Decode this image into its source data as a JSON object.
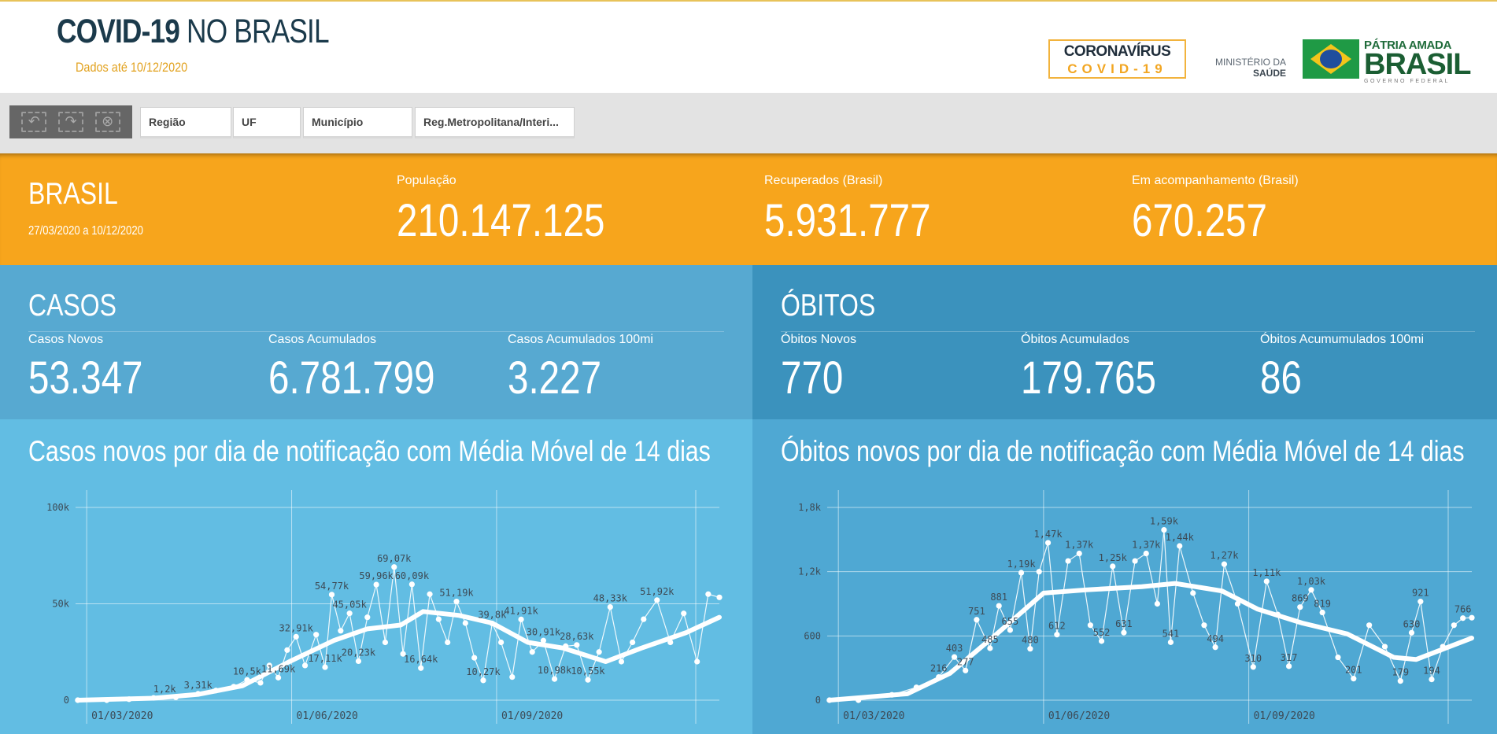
{
  "header": {
    "title_bold": "COVID-19",
    "title_light": " NO BRASIL",
    "updated": "Dados até 10/12/2020",
    "logo_covid_line1": "CORONAVÍRUS",
    "logo_covid_line2": "COVID-19",
    "ministry_line1": "MINISTÉRIO DA",
    "ministry_line2": "SAÚDE",
    "gov_line1": "PÁTRIA AMADA",
    "gov_line2": "BRASIL",
    "gov_line3": "GOVERNO FEDERAL"
  },
  "filters": {
    "undo_icon": "undo-icon",
    "redo_icon": "redo-icon",
    "clear_icon": "clear-selection-icon",
    "items": [
      "Região",
      "UF",
      "Município",
      "Reg.Metropolitana/Interi..."
    ]
  },
  "summary": {
    "title": "BRASIL",
    "range": "27/03/2020 a 10/12/2020",
    "populacao_label": "População",
    "populacao_value": "210.147.125",
    "recuperados_label": "Recuperados (Brasil)",
    "recuperados_value": "5.931.777",
    "acompanhamento_label": "Em acompanhamento (Brasil)",
    "acompanhamento_value": "670.257"
  },
  "casos": {
    "title": "CASOS",
    "metrics": [
      {
        "label": "Casos Novos",
        "value": "53.347"
      },
      {
        "label": "Casos Acumulados",
        "value": "6.781.799"
      },
      {
        "label": "Casos Acumulados 100mi",
        "value": "3.227"
      }
    ]
  },
  "obitos": {
    "title": "ÓBITOS",
    "metrics": [
      {
        "label": "Óbitos Novos",
        "value": "770"
      },
      {
        "label": "Óbitos Acumulados",
        "value": "179.765"
      },
      {
        "label": "Óbitos Acumumulados 100mi",
        "value": "86"
      }
    ]
  },
  "colors": {
    "summary_bg": "#f7a51c",
    "casos_bg": "#57a9d1",
    "obitos_bg": "#3b92bd",
    "casos_chart_bg": "#62bde3",
    "obitos_chart_bg": "#4fa8d3",
    "series": "#ffffff",
    "axis_text": "#3d4a55"
  },
  "chart_data": [
    {
      "type": "line",
      "title": "Casos novos por dia de notificação com Média Móvel de 14 dias",
      "xlabel": "",
      "ylabel": "",
      "ylim": [
        0,
        100000
      ],
      "yticks": [
        0,
        50000,
        100000
      ],
      "ytick_labels": [
        "0",
        "50k",
        "100k"
      ],
      "xticks": [
        "2020-03-01",
        "2020-06-01",
        "2020-09-01"
      ],
      "xtick_labels": [
        "01/03/2020",
        "01/06/2020",
        "01/09/2020"
      ],
      "xlim": [
        "2020-02-25",
        "2020-12-10"
      ],
      "grid": true,
      "series": [
        {
          "values_by_date": [
            [
              "2020-02-26",
              0
            ],
            [
              "2020-03-10",
              0
            ],
            [
              "2020-03-20",
              500
            ],
            [
              "2020-03-31",
              1200
            ],
            [
              "2020-04-10",
              1500
            ],
            [
              "2020-04-20",
              3310
            ],
            [
              "2020-04-28",
              5000
            ],
            [
              "2020-05-06",
              7000
            ],
            [
              "2020-05-12",
              10500
            ],
            [
              "2020-05-18",
              9000
            ],
            [
              "2020-05-22",
              18000
            ],
            [
              "2020-05-26",
              11690
            ],
            [
              "2020-05-30",
              26000
            ],
            [
              "2020-06-03",
              32910
            ],
            [
              "2020-06-07",
              18000
            ],
            [
              "2020-06-12",
              34000
            ],
            [
              "2020-06-16",
              17110
            ],
            [
              "2020-06-19",
              54770
            ],
            [
              "2020-06-23",
              36000
            ],
            [
              "2020-06-27",
              45050
            ],
            [
              "2020-07-01",
              20230
            ],
            [
              "2020-07-05",
              43000
            ],
            [
              "2020-07-09",
              59960
            ],
            [
              "2020-07-13",
              30000
            ],
            [
              "2020-07-17",
              69070
            ],
            [
              "2020-07-21",
              24000
            ],
            [
              "2020-07-25",
              60090
            ],
            [
              "2020-07-29",
              16640
            ],
            [
              "2020-08-02",
              55000
            ],
            [
              "2020-08-06",
              42000
            ],
            [
              "2020-08-10",
              30000
            ],
            [
              "2020-08-14",
              51190
            ],
            [
              "2020-08-18",
              40000
            ],
            [
              "2020-08-22",
              22000
            ],
            [
              "2020-08-26",
              10270
            ],
            [
              "2020-08-30",
              39800
            ],
            [
              "2020-09-03",
              30000
            ],
            [
              "2020-09-08",
              12000
            ],
            [
              "2020-09-12",
              41910
            ],
            [
              "2020-09-17",
              25000
            ],
            [
              "2020-09-22",
              30910
            ],
            [
              "2020-09-27",
              10980
            ],
            [
              "2020-10-02",
              28000
            ],
            [
              "2020-10-07",
              28630
            ],
            [
              "2020-10-12",
              10550
            ],
            [
              "2020-10-17",
              25000
            ],
            [
              "2020-10-22",
              48330
            ],
            [
              "2020-10-27",
              20000
            ],
            [
              "2020-11-01",
              30000
            ],
            [
              "2020-11-06",
              42000
            ],
            [
              "2020-11-12",
              51920
            ],
            [
              "2020-11-18",
              30000
            ],
            [
              "2020-11-24",
              45000
            ],
            [
              "2020-11-30",
              20000
            ],
            [
              "2020-12-05",
              55000
            ],
            [
              "2020-12-10",
              53347
            ]
          ],
          "moving_average": [
            [
              "2020-02-26",
              0
            ],
            [
              "2020-03-31",
              1000
            ],
            [
              "2020-04-20",
              3000
            ],
            [
              "2020-05-10",
              7500
            ],
            [
              "2020-05-31",
              20000
            ],
            [
              "2020-06-20",
              31000
            ],
            [
              "2020-07-05",
              37000
            ],
            [
              "2020-07-20",
              39000
            ],
            [
              "2020-07-30",
              46000
            ],
            [
              "2020-08-15",
              44000
            ],
            [
              "2020-08-30",
              40000
            ],
            [
              "2020-09-15",
              30000
            ],
            [
              "2020-10-01",
              27000
            ],
            [
              "2020-10-20",
              20000
            ],
            [
              "2020-11-05",
              27000
            ],
            [
              "2020-11-25",
              35000
            ],
            [
              "2020-12-10",
              43000
            ]
          ]
        }
      ],
      "data_labels": [
        [
          "2020-04-05",
          1200,
          "1,2k"
        ],
        [
          "2020-04-20",
          3310,
          "3,31k"
        ],
        [
          "2020-05-12",
          10500,
          "10,5k"
        ],
        [
          "2020-05-26",
          11690,
          "11,69k"
        ],
        [
          "2020-06-03",
          32910,
          "32,91k"
        ],
        [
          "2020-06-16",
          17110,
          "17,11k"
        ],
        [
          "2020-06-19",
          54770,
          "54,77k"
        ],
        [
          "2020-06-27",
          45050,
          "45,05k"
        ],
        [
          "2020-07-01",
          20230,
          "20,23k"
        ],
        [
          "2020-07-09",
          59960,
          "59,96k"
        ],
        [
          "2020-07-17",
          69070,
          "69,07k"
        ],
        [
          "2020-07-25",
          60090,
          "60,09k"
        ],
        [
          "2020-07-29",
          16640,
          "16,64k"
        ],
        [
          "2020-08-14",
          51190,
          "51,19k"
        ],
        [
          "2020-08-26",
          10270,
          "10,27k"
        ],
        [
          "2020-08-30",
          39800,
          "39,8k"
        ],
        [
          "2020-09-12",
          41910,
          "41,91k"
        ],
        [
          "2020-09-22",
          30910,
          "30,91k"
        ],
        [
          "2020-09-27",
          10980,
          "10,98k"
        ],
        [
          "2020-10-07",
          28630,
          "28,63k"
        ],
        [
          "2020-10-12",
          10550,
          "10,55k"
        ],
        [
          "2020-10-22",
          48330,
          "48,33k"
        ],
        [
          "2020-11-12",
          51920,
          "51,92k"
        ]
      ]
    },
    {
      "type": "line",
      "title": "Óbitos novos por dia de notificação com Média Móvel de 14 dias",
      "xlabel": "",
      "ylabel": "",
      "ylim": [
        0,
        1800
      ],
      "yticks": [
        0,
        600,
        1200,
        1800
      ],
      "ytick_labels": [
        "0",
        "600",
        "1,2k",
        "1,8k"
      ],
      "xticks": [
        "2020-03-01",
        "2020-06-01",
        "2020-09-01"
      ],
      "xtick_labels": [
        "01/03/2020",
        "01/06/2020",
        "01/09/2020"
      ],
      "xlim": [
        "2020-02-25",
        "2020-12-10"
      ],
      "grid": true,
      "series": [
        {
          "values_by_date": [
            [
              "2020-02-26",
              0
            ],
            [
              "2020-03-10",
              0
            ],
            [
              "2020-03-25",
              50
            ],
            [
              "2020-04-05",
              120
            ],
            [
              "2020-04-15",
              216
            ],
            [
              "2020-04-22",
              403
            ],
            [
              "2020-04-27",
              277
            ],
            [
              "2020-05-02",
              751
            ],
            [
              "2020-05-08",
              485
            ],
            [
              "2020-05-12",
              881
            ],
            [
              "2020-05-17",
              655
            ],
            [
              "2020-05-22",
              1190
            ],
            [
              "2020-05-26",
              480
            ],
            [
              "2020-05-30",
              1200
            ],
            [
              "2020-06-03",
              1470
            ],
            [
              "2020-06-07",
              612
            ],
            [
              "2020-06-12",
              1300
            ],
            [
              "2020-06-17",
              1370
            ],
            [
              "2020-06-22",
              700
            ],
            [
              "2020-06-27",
              552
            ],
            [
              "2020-07-02",
              1250
            ],
            [
              "2020-07-07",
              631
            ],
            [
              "2020-07-12",
              1300
            ],
            [
              "2020-07-17",
              1370
            ],
            [
              "2020-07-22",
              900
            ],
            [
              "2020-07-25",
              1590
            ],
            [
              "2020-07-28",
              541
            ],
            [
              "2020-08-01",
              1440
            ],
            [
              "2020-08-07",
              1000
            ],
            [
              "2020-08-12",
              700
            ],
            [
              "2020-08-17",
              494
            ],
            [
              "2020-08-21",
              1270
            ],
            [
              "2020-08-27",
              900
            ],
            [
              "2020-09-03",
              310
            ],
            [
              "2020-09-09",
              1110
            ],
            [
              "2020-09-14",
              800
            ],
            [
              "2020-09-19",
              317
            ],
            [
              "2020-09-24",
              869
            ],
            [
              "2020-09-29",
              1030
            ],
            [
              "2020-10-04",
              819
            ],
            [
              "2020-10-11",
              400
            ],
            [
              "2020-10-18",
              201
            ],
            [
              "2020-10-25",
              700
            ],
            [
              "2020-11-01",
              500
            ],
            [
              "2020-11-08",
              179
            ],
            [
              "2020-11-13",
              630
            ],
            [
              "2020-11-17",
              921
            ],
            [
              "2020-11-22",
              194
            ],
            [
              "2020-11-27",
              500
            ],
            [
              "2020-12-02",
              700
            ],
            [
              "2020-12-06",
              766
            ],
            [
              "2020-12-10",
              770
            ]
          ],
          "moving_average": [
            [
              "2020-02-26",
              0
            ],
            [
              "2020-04-01",
              60
            ],
            [
              "2020-04-20",
              250
            ],
            [
              "2020-05-10",
              600
            ],
            [
              "2020-06-01",
              1000
            ],
            [
              "2020-06-20",
              1030
            ],
            [
              "2020-07-15",
              1060
            ],
            [
              "2020-07-30",
              1090
            ],
            [
              "2020-08-20",
              1020
            ],
            [
              "2020-09-05",
              850
            ],
            [
              "2020-09-25",
              720
            ],
            [
              "2020-10-15",
              620
            ],
            [
              "2020-11-05",
              400
            ],
            [
              "2020-11-15",
              380
            ],
            [
              "2020-11-30",
              500
            ],
            [
              "2020-12-10",
              580
            ]
          ]
        }
      ],
      "data_labels": [
        [
          "2020-04-15",
          216,
          "216"
        ],
        [
          "2020-04-22",
          403,
          "403"
        ],
        [
          "2020-04-27",
          277,
          "277"
        ],
        [
          "2020-05-02",
          751,
          "751"
        ],
        [
          "2020-05-08",
          485,
          "485"
        ],
        [
          "2020-05-12",
          881,
          "881"
        ],
        [
          "2020-05-17",
          655,
          "655"
        ],
        [
          "2020-05-22",
          1190,
          "1,19k"
        ],
        [
          "2020-05-26",
          480,
          "480"
        ],
        [
          "2020-06-03",
          1470,
          "1,47k"
        ],
        [
          "2020-06-07",
          612,
          "612"
        ],
        [
          "2020-06-17",
          1370,
          "1,37k"
        ],
        [
          "2020-06-27",
          552,
          "552"
        ],
        [
          "2020-07-02",
          1250,
          "1,25k"
        ],
        [
          "2020-07-07",
          631,
          "631"
        ],
        [
          "2020-07-17",
          1370,
          "1,37k"
        ],
        [
          "2020-07-25",
          1590,
          "1,59k"
        ],
        [
          "2020-07-28",
          541,
          "541"
        ],
        [
          "2020-08-01",
          1440,
          "1,44k"
        ],
        [
          "2020-08-17",
          494,
          "494"
        ],
        [
          "2020-08-21",
          1270,
          "1,27k"
        ],
        [
          "2020-09-03",
          310,
          "310"
        ],
        [
          "2020-09-09",
          1110,
          "1,11k"
        ],
        [
          "2020-09-19",
          317,
          "317"
        ],
        [
          "2020-09-24",
          869,
          "869"
        ],
        [
          "2020-09-29",
          1030,
          "1,03k"
        ],
        [
          "2020-10-04",
          819,
          "819"
        ],
        [
          "2020-10-18",
          201,
          "201"
        ],
        [
          "2020-11-08",
          179,
          "179"
        ],
        [
          "2020-11-13",
          630,
          "630"
        ],
        [
          "2020-11-17",
          921,
          "921"
        ],
        [
          "2020-11-22",
          194,
          "194"
        ],
        [
          "2020-12-06",
          766,
          "766"
        ]
      ]
    }
  ]
}
